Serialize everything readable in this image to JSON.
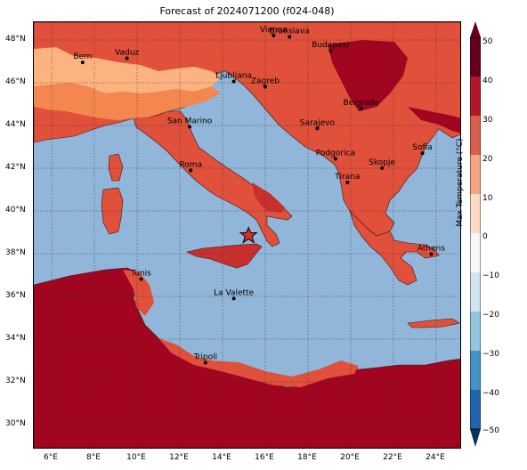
{
  "title": "Forecast of 2024071200 (f024-048)",
  "lat_ticks": [
    "48°N",
    "46°N",
    "44°N",
    "42°N",
    "40°N",
    "38°N",
    "36°N",
    "34°N",
    "32°N",
    "30°N"
  ],
  "lon_ticks": [
    "6°E",
    "8°E",
    "10°E",
    "12°E",
    "14°E",
    "16°E",
    "18°E",
    "20°E",
    "22°E",
    "24°E"
  ],
  "cities": [
    {
      "name": "Vienna",
      "lon": 16.37,
      "lat": 48.21
    },
    {
      "name": "Bratislava",
      "lon": 17.11,
      "lat": 48.15
    },
    {
      "name": "Budapest",
      "lon": 19.04,
      "lat": 47.5
    },
    {
      "name": "Bern",
      "lon": 7.45,
      "lat": 46.95
    },
    {
      "name": "Vaduz",
      "lon": 9.52,
      "lat": 47.14
    },
    {
      "name": "Ljubljana",
      "lon": 14.51,
      "lat": 46.06
    },
    {
      "name": "Zagreb",
      "lon": 15.98,
      "lat": 45.81
    },
    {
      "name": "Belgrade",
      "lon": 20.46,
      "lat": 44.79
    },
    {
      "name": "San Marino",
      "lon": 12.45,
      "lat": 43.94
    },
    {
      "name": "Sarajevo",
      "lon": 18.41,
      "lat": 43.86
    },
    {
      "name": "Sofia",
      "lon": 23.32,
      "lat": 42.7
    },
    {
      "name": "Podgorica",
      "lon": 19.26,
      "lat": 42.44
    },
    {
      "name": "Skopje",
      "lon": 21.43,
      "lat": 42.0
    },
    {
      "name": "Roma",
      "lon": 12.5,
      "lat": 41.9
    },
    {
      "name": "Tirana",
      "lon": 19.82,
      "lat": 41.33
    },
    {
      "name": "Athens",
      "lon": 23.73,
      "lat": 37.98
    },
    {
      "name": "Tunis",
      "lon": 10.18,
      "lat": 36.81
    },
    {
      "name": "La Valette",
      "lon": 14.51,
      "lat": 35.9
    },
    {
      "name": "Tripoli",
      "lon": 13.19,
      "lat": 32.89
    }
  ],
  "marker": {
    "name": "star-marker",
    "lon": 15.2,
    "lat": 38.85
  },
  "colorbar": {
    "label": "Max Temperature (°C)",
    "ticks": [
      "50",
      "40",
      "30",
      "20",
      "10",
      "0",
      "−10",
      "−20",
      "−30",
      "−40",
      "−50"
    ],
    "colors": [
      "#053061",
      "#2166ac",
      "#4393c3",
      "#92c5de",
      "#d1e5f0",
      "#fddbc7",
      "#f4a582",
      "#d6604d",
      "#b2182b",
      "#67001f"
    ],
    "range": [
      -50,
      50
    ]
  },
  "legend_colors": {
    "sea": "#92b6d9",
    "t20_25": "#fdb380",
    "t25_30": "#f4874f",
    "t30_35": "#e0503a",
    "t35_40": "#c8302e",
    "t40_plus": "#a1051f"
  }
}
